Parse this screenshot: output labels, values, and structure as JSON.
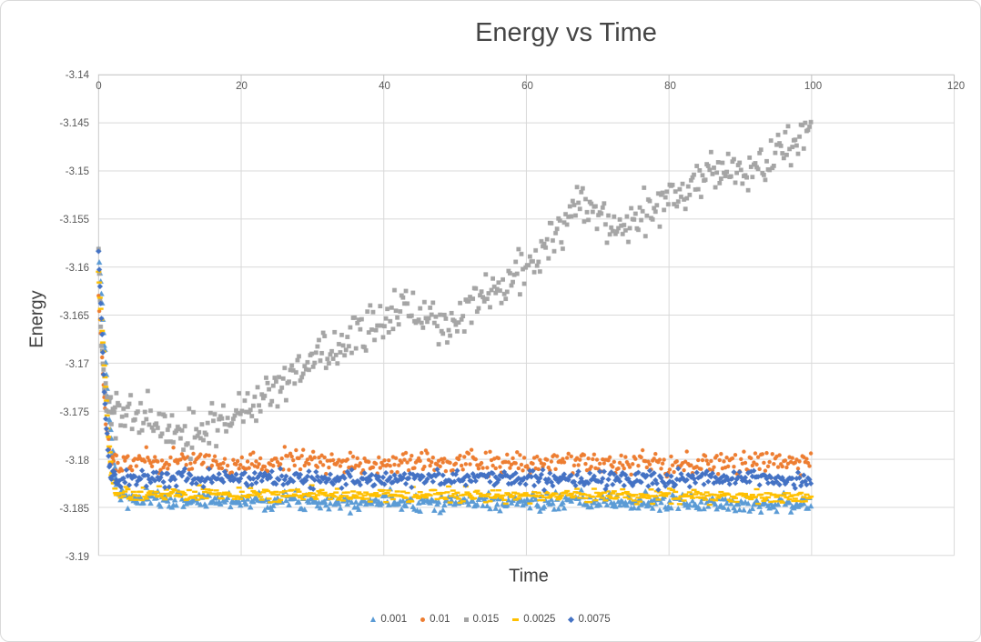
{
  "window": {
    "background": "#ffffff",
    "border_color": "#d9d9d9"
  },
  "chart_data": {
    "type": "scatter",
    "title": "Energy vs Time",
    "xlabel": "Time",
    "ylabel": "Energy",
    "xlim": [
      0,
      120
    ],
    "ylim": [
      -3.19,
      -3.14
    ],
    "xticks": [
      "0",
      "20",
      "40",
      "60",
      "80",
      "100",
      "120"
    ],
    "yticks": [
      "-3.14",
      "-3.145",
      "-3.15",
      "-3.155",
      "-3.16",
      "-3.165",
      "-3.17",
      "-3.175",
      "-3.18",
      "-3.185",
      "-3.19"
    ],
    "grid": {
      "horizontal": true,
      "vertical": true,
      "color": "#d9d9d9",
      "axis_color": "#bfbfbf",
      "y_axis_color": "#c9c9c9"
    },
    "text_colors": {
      "title": "#454545",
      "axis_title": "#414141",
      "tick": "#595959",
      "legend": "#4a4a4a"
    },
    "legend": {
      "position": "bottom",
      "entries": [
        "0.001",
        "0.01",
        "0.015",
        "0.0025",
        "0.0075"
      ]
    },
    "sampling": {
      "t_start": 0,
      "t_end": 100,
      "dt": 0.2,
      "dt_transient": 0.1,
      "transient_until": 2.5,
      "seed": 7
    },
    "series": [
      {
        "name": "0.001",
        "color": "#5B9BD5",
        "marker": "triangle",
        "noise_sd": 0.00045,
        "trend": [
          [
            0,
            -3.1585
          ],
          [
            0.3,
            -3.1615
          ],
          [
            0.7,
            -3.1665
          ],
          [
            1.1,
            -3.1715
          ],
          [
            1.6,
            -3.1765
          ],
          [
            2.1,
            -3.1805
          ],
          [
            2.8,
            -3.1835
          ],
          [
            4,
            -3.1842
          ],
          [
            100,
            -3.1846
          ]
        ]
      },
      {
        "name": "0.01",
        "color": "#ED7D31",
        "marker": "circle",
        "noise_sd": 0.0006,
        "trend": [
          [
            0,
            -3.163
          ],
          [
            0.5,
            -3.1695
          ],
          [
            1.0,
            -3.176
          ],
          [
            1.6,
            -3.1795
          ],
          [
            2.5,
            -3.1803
          ],
          [
            100,
            -3.1804
          ]
        ]
      },
      {
        "name": "0.015",
        "color": "#A5A5A5",
        "marker": "square",
        "noise_sd": 0.0011,
        "trend": [
          [
            0,
            -3.1585
          ],
          [
            0.4,
            -3.168
          ],
          [
            0.9,
            -3.1735
          ],
          [
            1.5,
            -3.1745
          ],
          [
            5,
            -3.1755
          ],
          [
            9,
            -3.1765
          ],
          [
            13,
            -3.1775
          ],
          [
            17,
            -3.1765
          ],
          [
            20,
            -3.1752
          ],
          [
            24,
            -3.173
          ],
          [
            28,
            -3.1712
          ],
          [
            32,
            -3.169
          ],
          [
            36,
            -3.1672
          ],
          [
            40,
            -3.166
          ],
          [
            43,
            -3.1638
          ],
          [
            46,
            -3.1648
          ],
          [
            49,
            -3.1663
          ],
          [
            52,
            -3.164
          ],
          [
            55,
            -3.1625
          ],
          [
            58,
            -3.1615
          ],
          [
            60,
            -3.16
          ],
          [
            64,
            -3.1565
          ],
          [
            67,
            -3.1535
          ],
          [
            70,
            -3.1545
          ],
          [
            73,
            -3.1565
          ],
          [
            76,
            -3.1548
          ],
          [
            80,
            -3.153
          ],
          [
            84,
            -3.1508
          ],
          [
            88,
            -3.1498
          ],
          [
            92,
            -3.1497
          ],
          [
            96,
            -3.1478
          ],
          [
            99,
            -3.1462
          ],
          [
            100,
            -3.1445
          ]
        ]
      },
      {
        "name": "0.0025",
        "color": "#FFC000",
        "marker": "dash",
        "noise_sd": 0.00035,
        "trend": [
          [
            0,
            -3.1605
          ],
          [
            0.4,
            -3.1655
          ],
          [
            0.8,
            -3.17
          ],
          [
            1.3,
            -3.1765
          ],
          [
            1.9,
            -3.1822
          ],
          [
            2.6,
            -3.1836
          ],
          [
            100,
            -3.1839
          ]
        ]
      },
      {
        "name": "0.0075",
        "color": "#4472C4",
        "marker": "diamond",
        "noise_sd": 0.00045,
        "trend": [
          [
            0,
            -3.1585
          ],
          [
            0.4,
            -3.1655
          ],
          [
            0.9,
            -3.1745
          ],
          [
            1.5,
            -3.1812
          ],
          [
            2.2,
            -3.182
          ],
          [
            100,
            -3.182
          ]
        ]
      }
    ]
  }
}
